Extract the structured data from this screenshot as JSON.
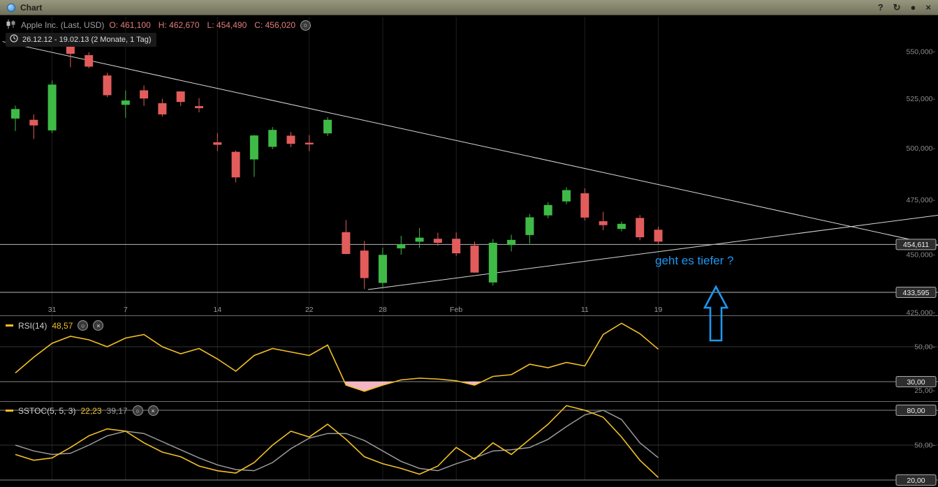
{
  "titlebar": {
    "title": "Chart",
    "icons": {
      "help": "?",
      "reset": "↻",
      "settings": "●",
      "close": "×"
    }
  },
  "icons": {
    "circle": "○",
    "close": "×"
  },
  "header": {
    "instrument": "Apple Inc. (Last, USD)",
    "ohlc": [
      {
        "label": "O:",
        "value": "461,100"
      },
      {
        "label": "H:",
        "value": "462,670"
      },
      {
        "label": "L:",
        "value": "454,490"
      },
      {
        "label": "C:",
        "value": "456,020"
      }
    ],
    "range": "26.12.12 - 19.02.13 (2 Monate, 1 Tag)"
  },
  "indicators": {
    "rsi": {
      "name": "RSI(14)",
      "value": "48,57"
    },
    "sstoc": {
      "name": "SSTOC(5, 5, 3)",
      "value1": "22,23",
      "value2": "39,17"
    }
  },
  "annotation": {
    "text": "geht es tiefer ?",
    "arrow_points": [
      [
        1025,
        411
      ],
      [
        1041,
        441
      ],
      [
        1033,
        441
      ],
      [
        1033,
        488
      ],
      [
        1017,
        488
      ],
      [
        1017,
        441
      ],
      [
        1009,
        441
      ]
    ]
  },
  "colors": {
    "candle_up": "#3fba46",
    "candle_down": "#e25c5c",
    "trendline": "#d9d9d9",
    "hline": "#b8b8b8",
    "indicator_yellow": "#f2c025",
    "indicator_grey": "#9a9a9a",
    "oversold_fill": "#f3b6c3",
    "annotation_blue": "#1e97f0",
    "axis_text": "#8c8c8c"
  },
  "chart_data": {
    "type": "candlestick",
    "title": "Apple Inc. (Last, USD)",
    "period": "26.12.12 - 19.02.13 (2 Monate, 1 Tag)",
    "scale": "log",
    "price_axis": [
      {
        "price": 550,
        "label": "550,000-"
      },
      {
        "price": 525,
        "label": "525,000-"
      },
      {
        "price": 500,
        "label": "500,000-"
      },
      {
        "price": 475,
        "label": "475,000-"
      },
      {
        "price": 450,
        "label": "450,000-"
      },
      {
        "price": 425,
        "label": "425,000-"
      }
    ],
    "x_ticks": [
      {
        "label": "31",
        "candle": 3
      },
      {
        "label": "7",
        "candle": 7
      },
      {
        "label": "14",
        "candle": 12
      },
      {
        "label": "22",
        "candle": 17
      },
      {
        "label": "28",
        "candle": 21
      },
      {
        "label": "Feb",
        "candle": 25
      },
      {
        "label": "11",
        "candle": 32
      },
      {
        "label": "19",
        "candle": 36
      }
    ],
    "candles": [
      {
        "o": 515.0,
        "h": 521.5,
        "l": 508.5,
        "c": 519.5
      },
      {
        "o": 514.0,
        "h": 517.0,
        "l": 504.5,
        "c": 511.5
      },
      {
        "o": 509.0,
        "h": 534.5,
        "l": 507.5,
        "c": 532.2
      },
      {
        "o": 553.8,
        "h": 555.0,
        "l": 541.6,
        "c": 549.0
      },
      {
        "o": 547.9,
        "h": 549.7,
        "l": 541.0,
        "c": 542.1
      },
      {
        "o": 537.0,
        "h": 538.6,
        "l": 525.8,
        "c": 527.0
      },
      {
        "o": 522.0,
        "h": 529.3,
        "l": 515.2,
        "c": 523.9
      },
      {
        "o": 529.2,
        "h": 531.9,
        "l": 521.3,
        "c": 525.3
      },
      {
        "o": 522.5,
        "h": 525.0,
        "l": 515.8,
        "c": 517.1
      },
      {
        "o": 528.6,
        "h": 528.8,
        "l": 521.2,
        "c": 523.5
      },
      {
        "o": 521.0,
        "h": 525.3,
        "l": 518.0,
        "c": 520.3
      },
      {
        "o": 502.7,
        "h": 507.5,
        "l": 498.5,
        "c": 501.8
      },
      {
        "o": 498.0,
        "h": 498.8,
        "l": 483.4,
        "c": 485.9
      },
      {
        "o": 494.6,
        "h": 506.5,
        "l": 486.0,
        "c": 506.1
      },
      {
        "o": 500.8,
        "h": 510.5,
        "l": 499.5,
        "c": 508.9
      },
      {
        "o": 506.0,
        "h": 508.0,
        "l": 500.5,
        "c": 502.3
      },
      {
        "o": 502.5,
        "h": 506.5,
        "l": 498.5,
        "c": 502.0
      },
      {
        "o": 507.5,
        "h": 515.5,
        "l": 506.0,
        "c": 514.0
      },
      {
        "o": 460.0,
        "h": 465.7,
        "l": 450.2,
        "c": 450.5
      },
      {
        "o": 451.7,
        "h": 456.2,
        "l": 435.0,
        "c": 439.9
      },
      {
        "o": 437.8,
        "h": 453.2,
        "l": 435.2,
        "c": 449.8
      },
      {
        "o": 453.0,
        "h": 458.5,
        "l": 450.0,
        "c": 454.5
      },
      {
        "o": 456.0,
        "h": 462.0,
        "l": 453.0,
        "c": 457.5
      },
      {
        "o": 457.0,
        "h": 459.9,
        "l": 454.0,
        "c": 455.5
      },
      {
        "o": 457.0,
        "h": 460.0,
        "l": 449.5,
        "c": 450.8
      },
      {
        "o": 453.9,
        "h": 455.9,
        "l": 442.0,
        "c": 442.3
      },
      {
        "o": 438.0,
        "h": 457.0,
        "l": 436.5,
        "c": 455.2
      },
      {
        "o": 454.5,
        "h": 459.0,
        "l": 451.5,
        "c": 456.5
      },
      {
        "o": 459.0,
        "h": 468.5,
        "l": 455.0,
        "c": 466.8
      },
      {
        "o": 468.0,
        "h": 474.0,
        "l": 466.5,
        "c": 472.5
      },
      {
        "o": 474.5,
        "h": 481.0,
        "l": 473.0,
        "c": 479.5
      },
      {
        "o": 478.0,
        "h": 480.5,
        "l": 465.5,
        "c": 467.0
      },
      {
        "o": 465.0,
        "h": 469.5,
        "l": 461.0,
        "c": 463.5
      },
      {
        "o": 461.8,
        "h": 465.0,
        "l": 460.5,
        "c": 463.8
      },
      {
        "o": 466.5,
        "h": 468.0,
        "l": 456.5,
        "c": 458.0
      },
      {
        "o": 461.1,
        "h": 462.67,
        "l": 454.49,
        "c": 456.02
      }
    ],
    "hlines": [
      {
        "price": 454.611,
        "label": "454,611"
      },
      {
        "price": 433.595,
        "label": "433,595"
      }
    ],
    "trendlines": [
      {
        "from_candle": 0.3,
        "from_price": 555.5,
        "to_candle": 51.3,
        "to_price": 454.0
      },
      {
        "from_candle": 20.2,
        "from_price": 434.8,
        "to_candle": 51.3,
        "to_price": 468.0
      }
    ],
    "rsi": {
      "period": 14,
      "last": 48.57,
      "oversold_level": 30,
      "values": [
        35,
        44,
        52,
        56,
        54,
        50,
        55,
        57,
        50,
        46,
        49,
        43,
        36,
        45,
        49,
        47,
        45,
        51,
        28,
        24.5,
        28,
        31,
        32,
        31.5,
        30.5,
        28,
        33,
        34,
        40,
        38,
        41,
        39,
        57,
        63.5,
        57.5,
        48.57
      ],
      "levels": [
        {
          "value": 50,
          "label": "50,00-",
          "line": "subtle",
          "badge": false
        },
        {
          "value": 30,
          "label": "30,00",
          "line": "strong",
          "badge": true
        },
        {
          "value": 25,
          "label": "25,00-",
          "line": "none",
          "badge": false
        }
      ]
    },
    "sstoc": {
      "params": [
        5,
        5,
        3
      ],
      "last_k": 22.23,
      "last_d": 39.17,
      "k_values": [
        42,
        37,
        39,
        48,
        58,
        64,
        62,
        52,
        44,
        40,
        32,
        28,
        26,
        35,
        50,
        62,
        57,
        68,
        55,
        40,
        34,
        30,
        25,
        32,
        48,
        38,
        52,
        42,
        55,
        68,
        84,
        80,
        74,
        57,
        37,
        22.23
      ],
      "d_values": [
        50,
        45,
        42,
        43,
        50,
        58,
        62,
        60,
        53,
        46,
        39,
        33,
        29,
        28,
        35,
        47,
        56,
        60,
        60,
        54,
        45,
        36,
        30,
        28,
        34,
        39,
        45,
        46,
        48,
        55,
        66,
        76,
        80,
        72,
        52,
        39.17
      ],
      "levels": [
        {
          "value": 80,
          "label": "80,00",
          "line": "strong",
          "badge": true
        },
        {
          "value": 50,
          "label": "50,00-",
          "line": "subtle",
          "badge": false
        },
        {
          "value": 20,
          "label": "20,00",
          "line": "strong",
          "badge": true
        }
      ]
    }
  }
}
